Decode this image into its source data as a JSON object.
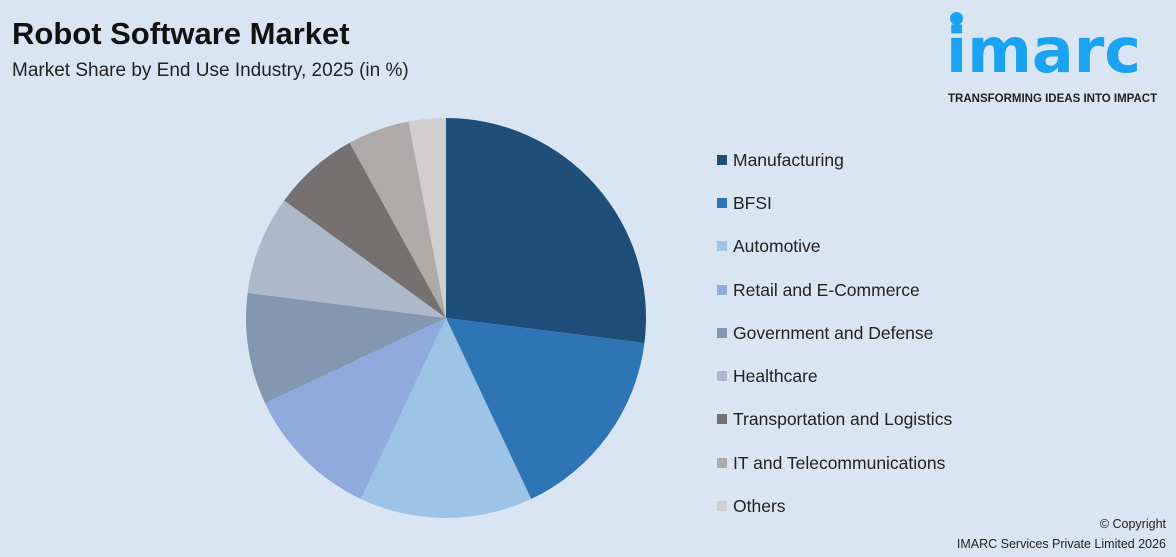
{
  "header": {
    "title": "Robot Software Market",
    "subtitle": "Market Share by End Use Industry, 2025 (in %)"
  },
  "logo": {
    "text": "imarc",
    "tagline": "TRANSFORMING IDEAS INTO IMPACT",
    "color": "#1aa3f0"
  },
  "footer": {
    "copyright": "© Copyright",
    "company": "IMARC Services Private Limited 2026"
  },
  "chart_data": {
    "type": "pie",
    "title": "Robot Software Market",
    "subtitle": "Market Share by End Use Industry, 2025 (in %)",
    "legend_position": "right",
    "start_angle": "top, clockwise",
    "categories": [
      "Manufacturing",
      "BFSI",
      "Automotive",
      "Retail and E-Commerce",
      "Government and Defense",
      "Healthcare",
      "Transportation and Logistics",
      "IT and Telecommunications",
      "Others"
    ],
    "values": [
      27,
      16,
      14,
      11,
      9,
      8,
      7,
      5,
      3
    ],
    "colors": [
      "#1f4e79",
      "#2e75b6",
      "#9dc3e6",
      "#8faadc",
      "#8497b0",
      "#adb9ca",
      "#767171",
      "#aeaaaa",
      "#d0cece"
    ]
  }
}
